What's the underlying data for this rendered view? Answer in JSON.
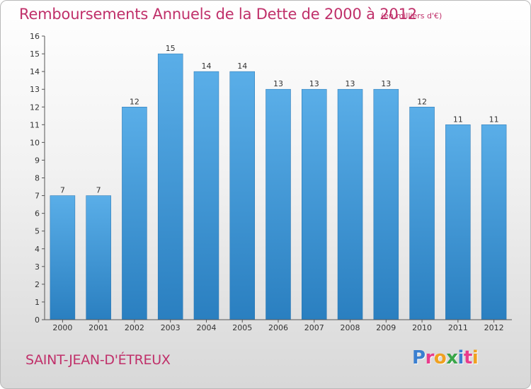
{
  "title": "Remboursements Annuels de la Dette de 2000 à 2012",
  "unit_note": "(en milliers d'€)",
  "place_name": "SAINT-JEAN-D'ÉTREUX",
  "logo": {
    "letters": [
      "P",
      "r",
      "o",
      "x",
      "i",
      "t",
      "i"
    ],
    "colors": [
      "#3a7fd0",
      "#e83c8c",
      "#f0a020",
      "#3aa64a",
      "#3a7fd0",
      "#e83c8c",
      "#f0a020"
    ]
  },
  "colors": {
    "bar_top": "#5aaee8",
    "bar_bottom": "#2a7fc0",
    "accent": "#c0306a"
  },
  "chart_data": {
    "type": "bar",
    "categories": [
      "2000",
      "2001",
      "2002",
      "2003",
      "2004",
      "2005",
      "2006",
      "2007",
      "2008",
      "2009",
      "2010",
      "2011",
      "2012"
    ],
    "values": [
      7,
      7,
      12,
      15,
      14,
      14,
      13,
      13,
      13,
      13,
      12,
      11,
      11
    ],
    "data_labels": [
      "7",
      "7",
      "12",
      "15",
      "14",
      "14",
      "13",
      "13",
      "13",
      "13",
      "12",
      "11",
      "11"
    ],
    "title": "Remboursements Annuels de la Dette de 2000 à 2012",
    "xlabel": "",
    "ylabel": "",
    "ylim": [
      0,
      16
    ],
    "yticks": [
      0,
      1,
      2,
      3,
      4,
      5,
      6,
      7,
      8,
      9,
      10,
      11,
      12,
      13,
      14,
      15,
      16
    ],
    "grid": false,
    "legend": "none"
  }
}
